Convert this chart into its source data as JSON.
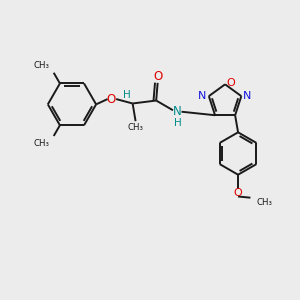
{
  "bg_color": "#ececec",
  "bond_color": "#1a1a1a",
  "O_color": "#e00000",
  "N_color": "#1414e0",
  "NH_color": "#008b8b",
  "figsize": [
    3.0,
    3.0
  ],
  "dpi": 100,
  "xlim": [
    0,
    10
  ],
  "ylim": [
    0,
    10
  ]
}
